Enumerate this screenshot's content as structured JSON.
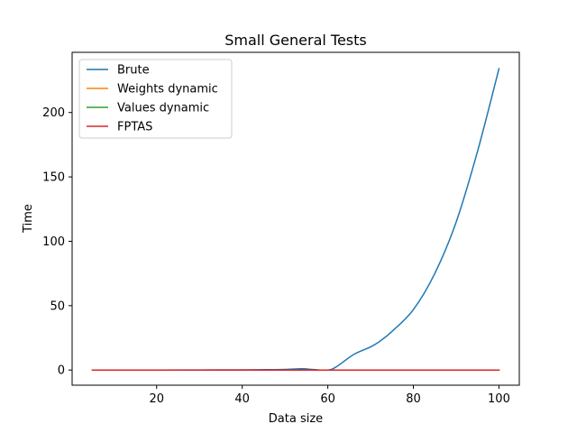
{
  "chart_data": {
    "type": "line",
    "title": "Small General Tests",
    "xlabel": "Data size",
    "ylabel": "Time",
    "xlim": [
      0.25,
      104.75
    ],
    "ylim": [
      -11.75,
      246.75
    ],
    "xticks": [
      20,
      40,
      60,
      80,
      100
    ],
    "yticks": [
      0,
      50,
      100,
      150,
      200
    ],
    "grid": false,
    "legend_position": "top-left",
    "series": [
      {
        "name": "Brute",
        "color": "#1f77b4",
        "points": [
          [
            5,
            0
          ],
          [
            20,
            0
          ],
          [
            30,
            0.1
          ],
          [
            40,
            0.2
          ],
          [
            45,
            0.3
          ],
          [
            50,
            0.5
          ],
          [
            54,
            1.0
          ],
          [
            57,
            0.3
          ],
          [
            60,
            0
          ],
          [
            62,
            2.5
          ],
          [
            66,
            12
          ],
          [
            70,
            18
          ],
          [
            72,
            22
          ],
          [
            75,
            30
          ],
          [
            80,
            47
          ],
          [
            85,
            75
          ],
          [
            90,
            115
          ],
          [
            95,
            170
          ],
          [
            100,
            234
          ]
        ]
      },
      {
        "name": "Weights dynamic",
        "color": "#ff7f0e",
        "points": [
          [
            5,
            0
          ],
          [
            30,
            0
          ],
          [
            55,
            0
          ],
          [
            80,
            0
          ],
          [
            100,
            0
          ]
        ]
      },
      {
        "name": "Values dynamic",
        "color": "#2ca02c",
        "points": [
          [
            5,
            0
          ],
          [
            30,
            0
          ],
          [
            55,
            0
          ],
          [
            80,
            0
          ],
          [
            100,
            0
          ]
        ]
      },
      {
        "name": "FPTAS",
        "color": "#d62728",
        "points": [
          [
            5,
            0
          ],
          [
            30,
            0
          ],
          [
            55,
            0
          ],
          [
            80,
            0
          ],
          [
            100,
            0
          ]
        ]
      }
    ]
  }
}
